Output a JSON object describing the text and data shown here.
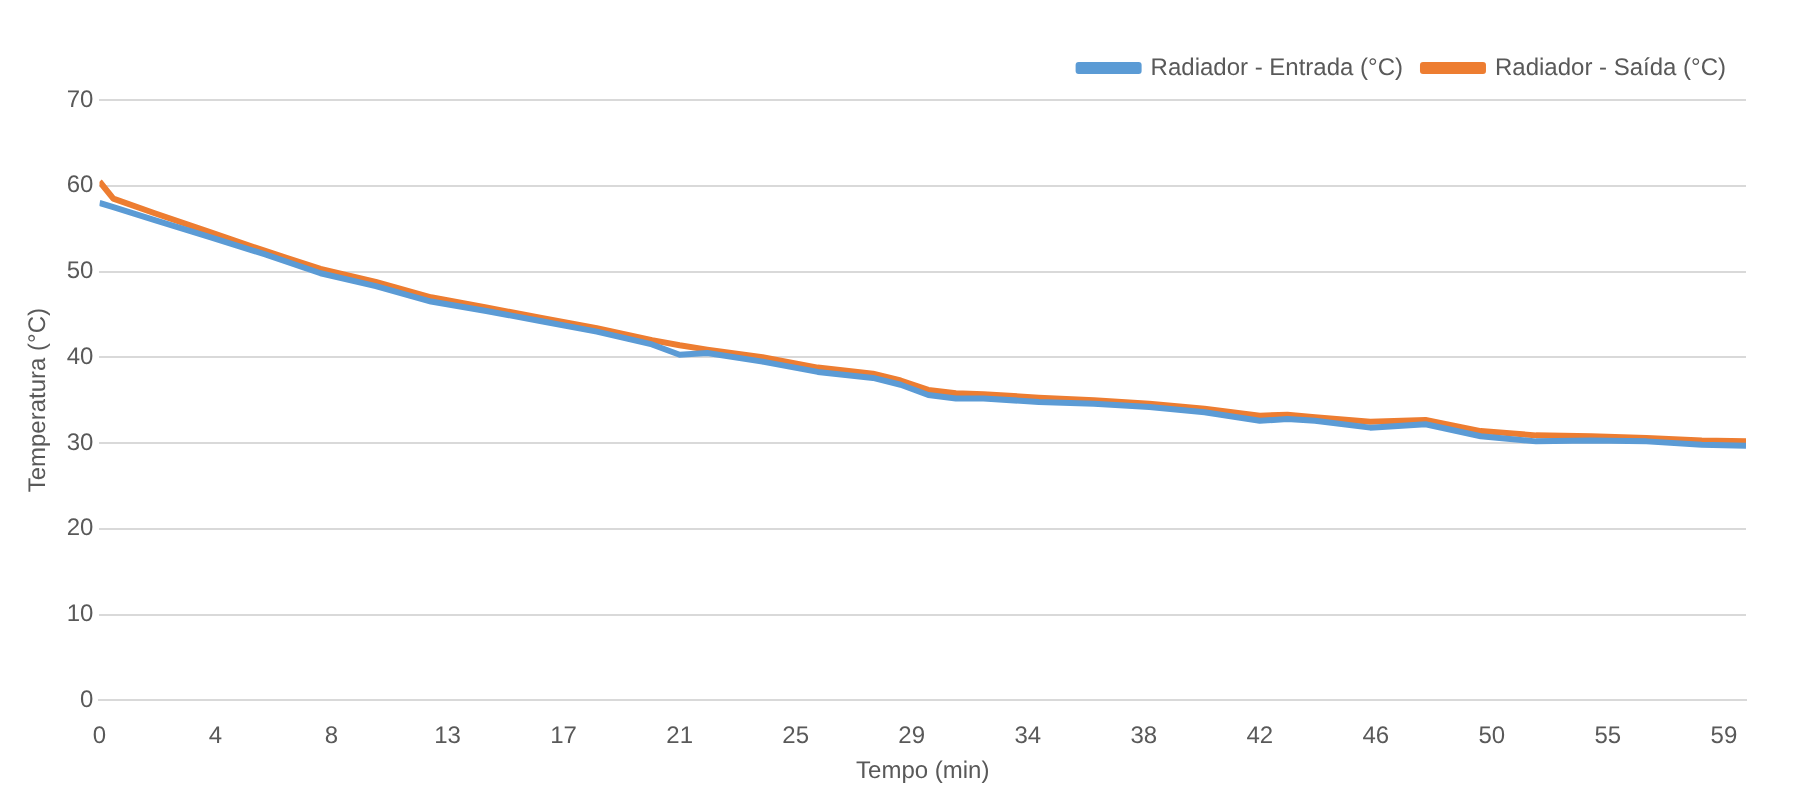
{
  "chart_data": {
    "type": "line",
    "xlabel": "Tempo (min)",
    "ylabel": "Temperatura (°C)",
    "xlim": [
      0,
      59.6
    ],
    "xticks": [
      0,
      {
        "value": 4.2,
        "label": "4"
      },
      {
        "value": 8.4,
        "label": "8"
      },
      {
        "value": 12.6,
        "label": "13"
      },
      {
        "value": 16.8,
        "label": "17"
      },
      21,
      {
        "value": 25.2,
        "label": "25"
      },
      {
        "value": 29.4,
        "label": "29"
      },
      {
        "value": 33.6,
        "label": "34"
      },
      {
        "value": 37.8,
        "label": "38"
      },
      42,
      {
        "value": 46.2,
        "label": "46"
      },
      {
        "value": 50.4,
        "label": "50"
      },
      {
        "value": 54.6,
        "label": "55"
      },
      {
        "value": 58.8,
        "label": "59"
      }
    ],
    "ylim": [
      0,
      70
    ],
    "yticks": [
      0,
      10,
      20,
      30,
      40,
      50,
      60,
      70
    ],
    "grid": "y",
    "legend": "top right",
    "marker": "none",
    "line_style": "solid",
    "series": [
      {
        "name": "Radiador - Entrada (°C)",
        "color": "#5b9bd5",
        "x": [
          0,
          0.5,
          2,
          4,
          6,
          8,
          10,
          12,
          14,
          16,
          18,
          20,
          21,
          22,
          24,
          26,
          28,
          29,
          30,
          31,
          32,
          34,
          36,
          38,
          40,
          42,
          43,
          44,
          46,
          48,
          50,
          52,
          54,
          56,
          58,
          59.6
        ],
        "values": [
          58,
          57.5,
          56,
          54,
          52,
          49.8,
          48.3,
          46.5,
          45.4,
          44.2,
          43,
          41.5,
          40.3,
          40.5,
          39.5,
          38.3,
          37.6,
          36.8,
          35.6,
          35.2,
          35.2,
          34.8,
          34.6,
          34.2,
          33.6,
          32.6,
          32.8,
          32.6,
          31.8,
          32.2,
          30.8,
          30.2,
          30.3,
          30.2,
          29.8,
          29.7
        ]
      },
      {
        "name": "Radiador - Saída (°C)",
        "color": "#ed7d31",
        "x": [
          0,
          0.5,
          2,
          4,
          6,
          8,
          10,
          12,
          14,
          16,
          18,
          20,
          21,
          22,
          24,
          26,
          28,
          29,
          30,
          31,
          32,
          34,
          36,
          38,
          40,
          42,
          43,
          44,
          46,
          48,
          50,
          52,
          54,
          56,
          58,
          59.6
        ],
        "values": [
          60.5,
          58.5,
          56.8,
          54.6,
          52.4,
          50.3,
          48.8,
          47,
          45.8,
          44.6,
          43.4,
          42,
          41.4,
          40.9,
          40,
          38.8,
          38.1,
          37.3,
          36.2,
          35.8,
          35.7,
          35.3,
          35,
          34.6,
          34,
          33.2,
          33.3,
          33,
          32.5,
          32.7,
          31.4,
          30.9,
          30.8,
          30.6,
          30.3,
          30.2
        ]
      }
    ]
  }
}
